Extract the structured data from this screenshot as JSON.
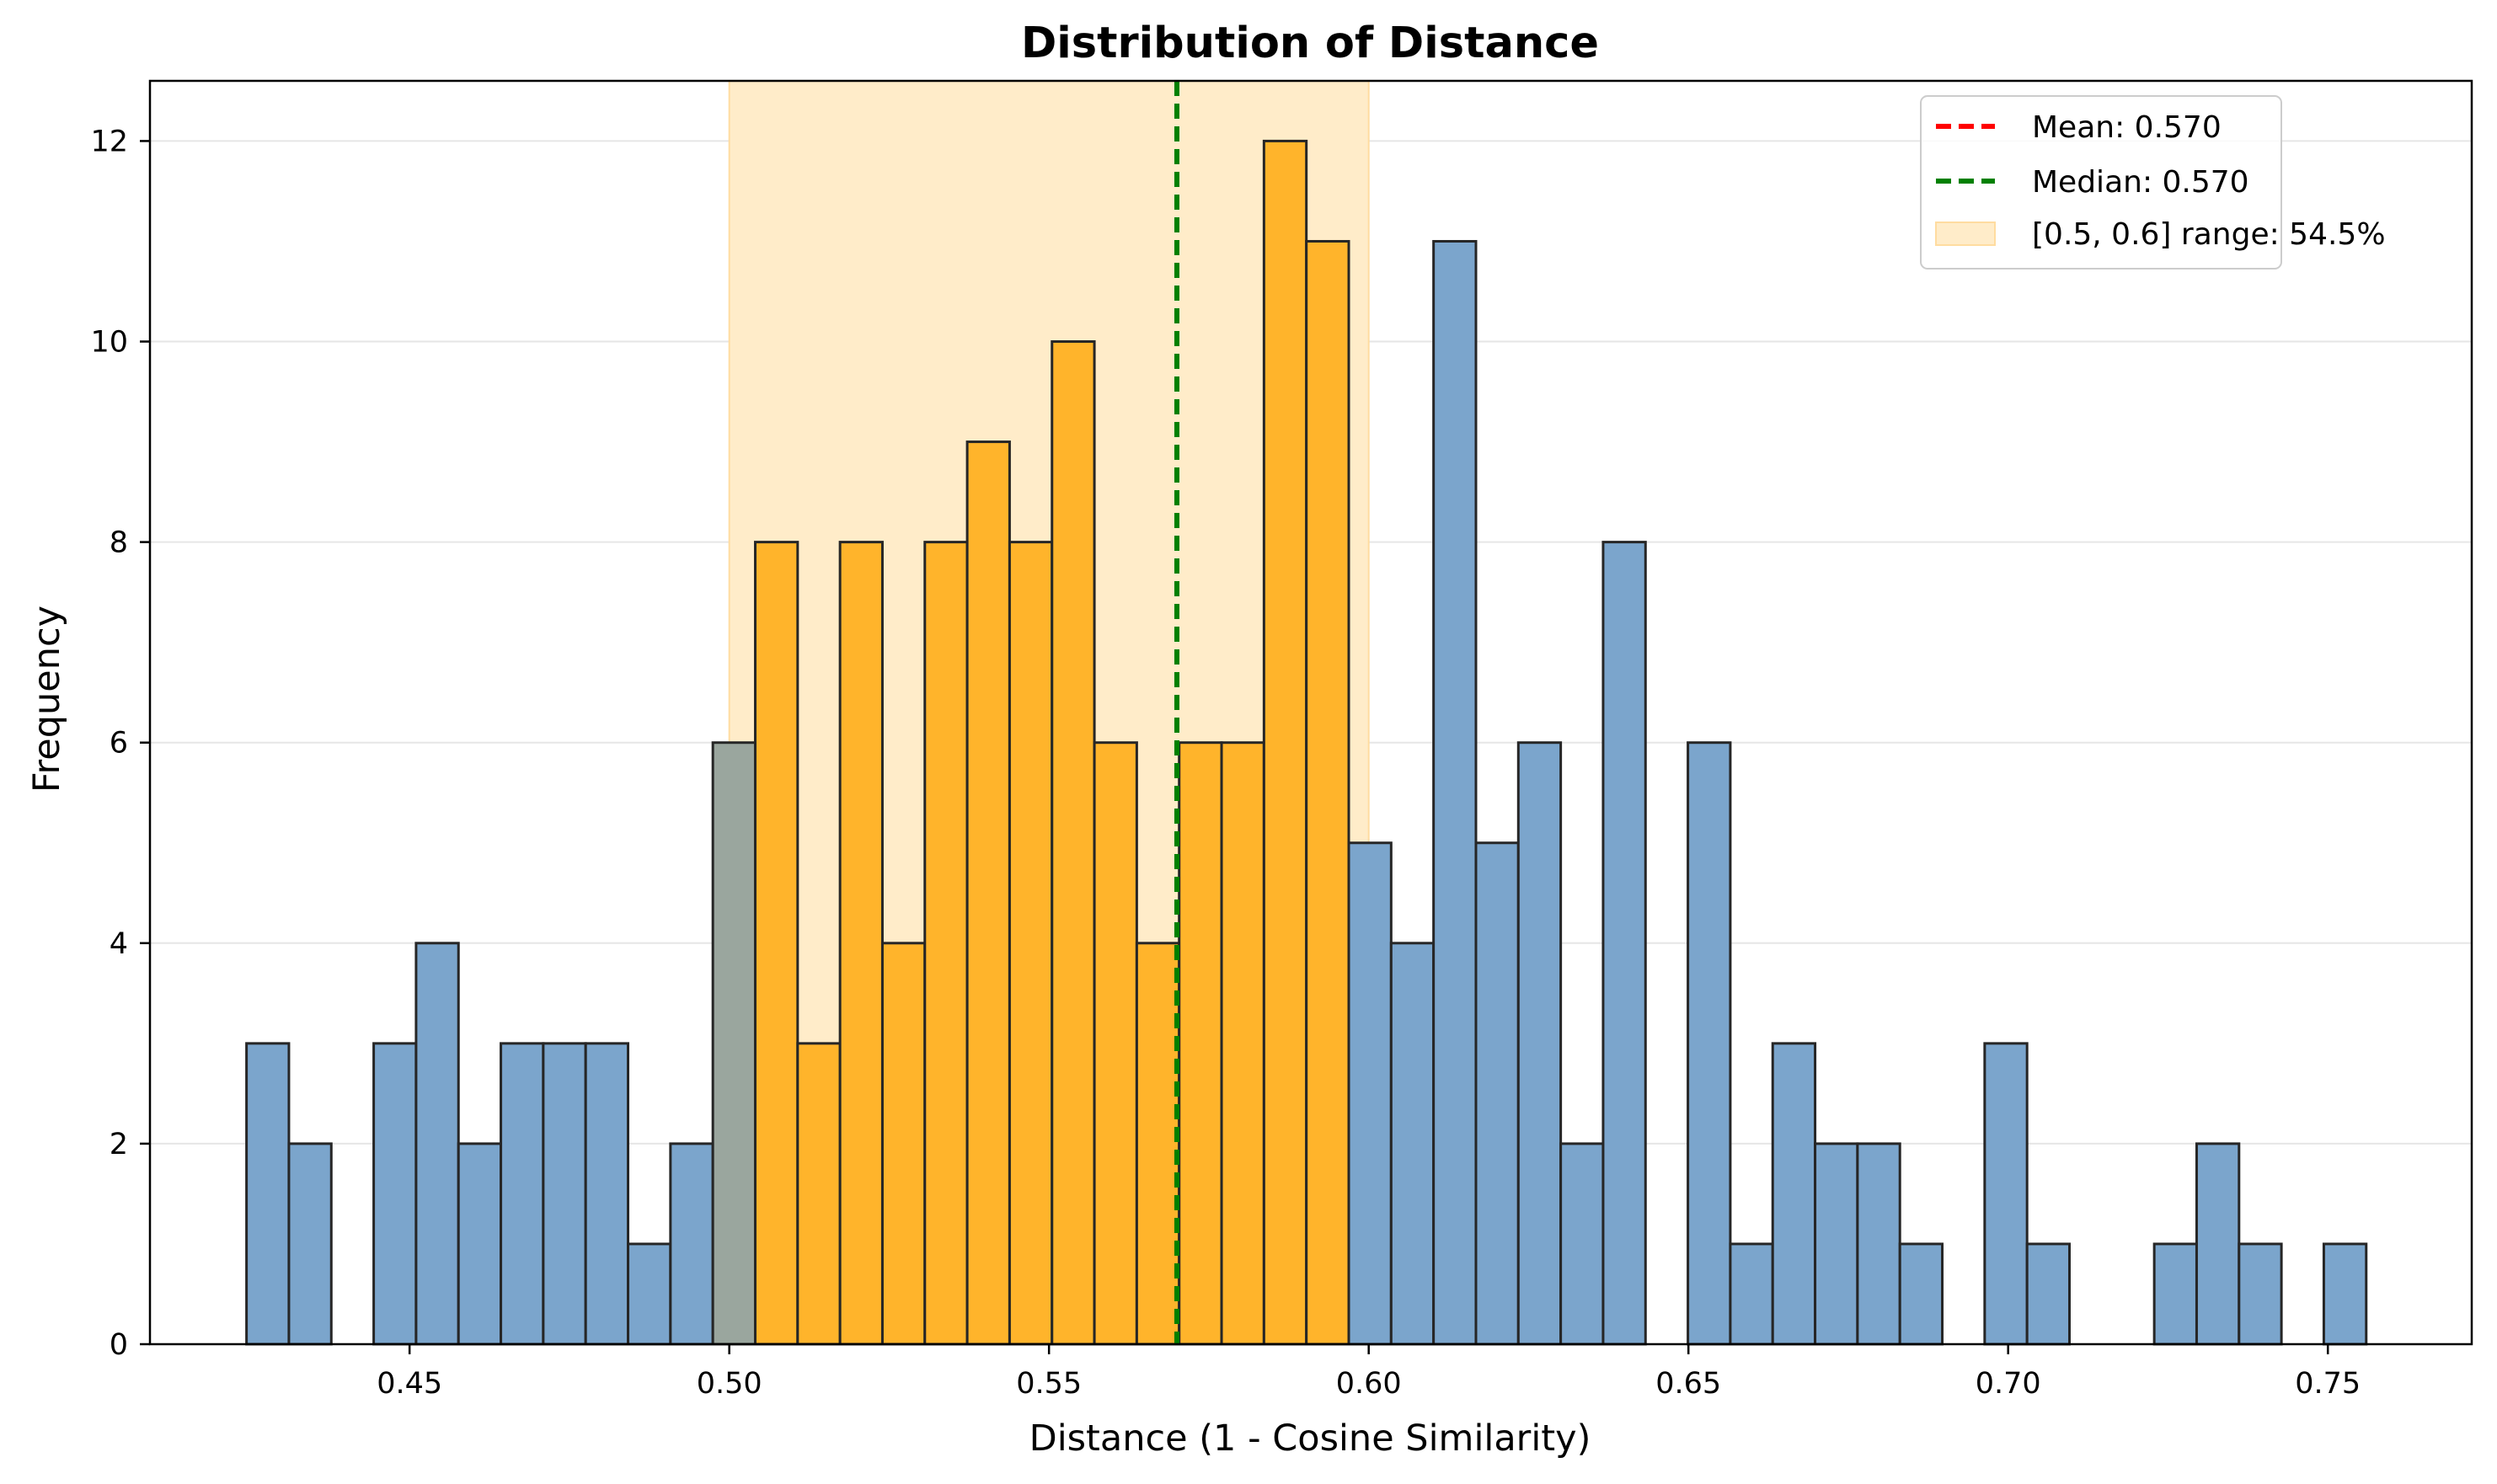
{
  "chart_data": {
    "type": "bar",
    "title": "Distribution of Distance",
    "xlabel": "Distance (1 - Cosine Similarity)",
    "ylabel": "Frequency",
    "xlim": [
      0.4094,
      0.7725
    ],
    "ylim": [
      0,
      12.6
    ],
    "xticks": [
      0.45,
      0.5,
      0.55,
      0.6,
      0.65,
      0.7,
      0.75
    ],
    "xtick_labels": [
      "0.45",
      "0.50",
      "0.55",
      "0.60",
      "0.65",
      "0.70",
      "0.75"
    ],
    "yticks": [
      0,
      2,
      4,
      6,
      8,
      10,
      12
    ],
    "ytick_labels": [
      "0",
      "2",
      "4",
      "6",
      "8",
      "10",
      "12"
    ],
    "grid": "y",
    "bin_start": 0.4245,
    "bin_width": 0.00663,
    "counts": [
      3,
      2,
      0,
      3,
      4,
      2,
      3,
      3,
      3,
      1,
      2,
      6,
      8,
      3,
      8,
      4,
      8,
      9,
      8,
      10,
      6,
      4,
      6,
      6,
      12,
      11,
      5,
      4,
      11,
      5,
      6,
      2,
      8,
      0,
      6,
      1,
      3,
      2,
      2,
      1,
      0,
      3,
      1,
      0,
      0,
      1,
      2,
      1,
      0,
      1
    ],
    "highlight_range": [
      0.5,
      0.6
    ],
    "colors": {
      "default_bar": "#7ba5cc",
      "highlight_bar": "#ffb42b",
      "shade": "#ffecc9",
      "edge": "#262626",
      "mean_line": "#ff0000",
      "median_line": "#008000",
      "grid": "#e6e6e6"
    },
    "mean": 0.57,
    "median": 0.57,
    "legend": {
      "position": "upper right",
      "mean_label": "Mean: 0.570",
      "median_label": "Median: 0.570",
      "range_label": "[0.5, 0.6] range: 54.5%"
    }
  }
}
